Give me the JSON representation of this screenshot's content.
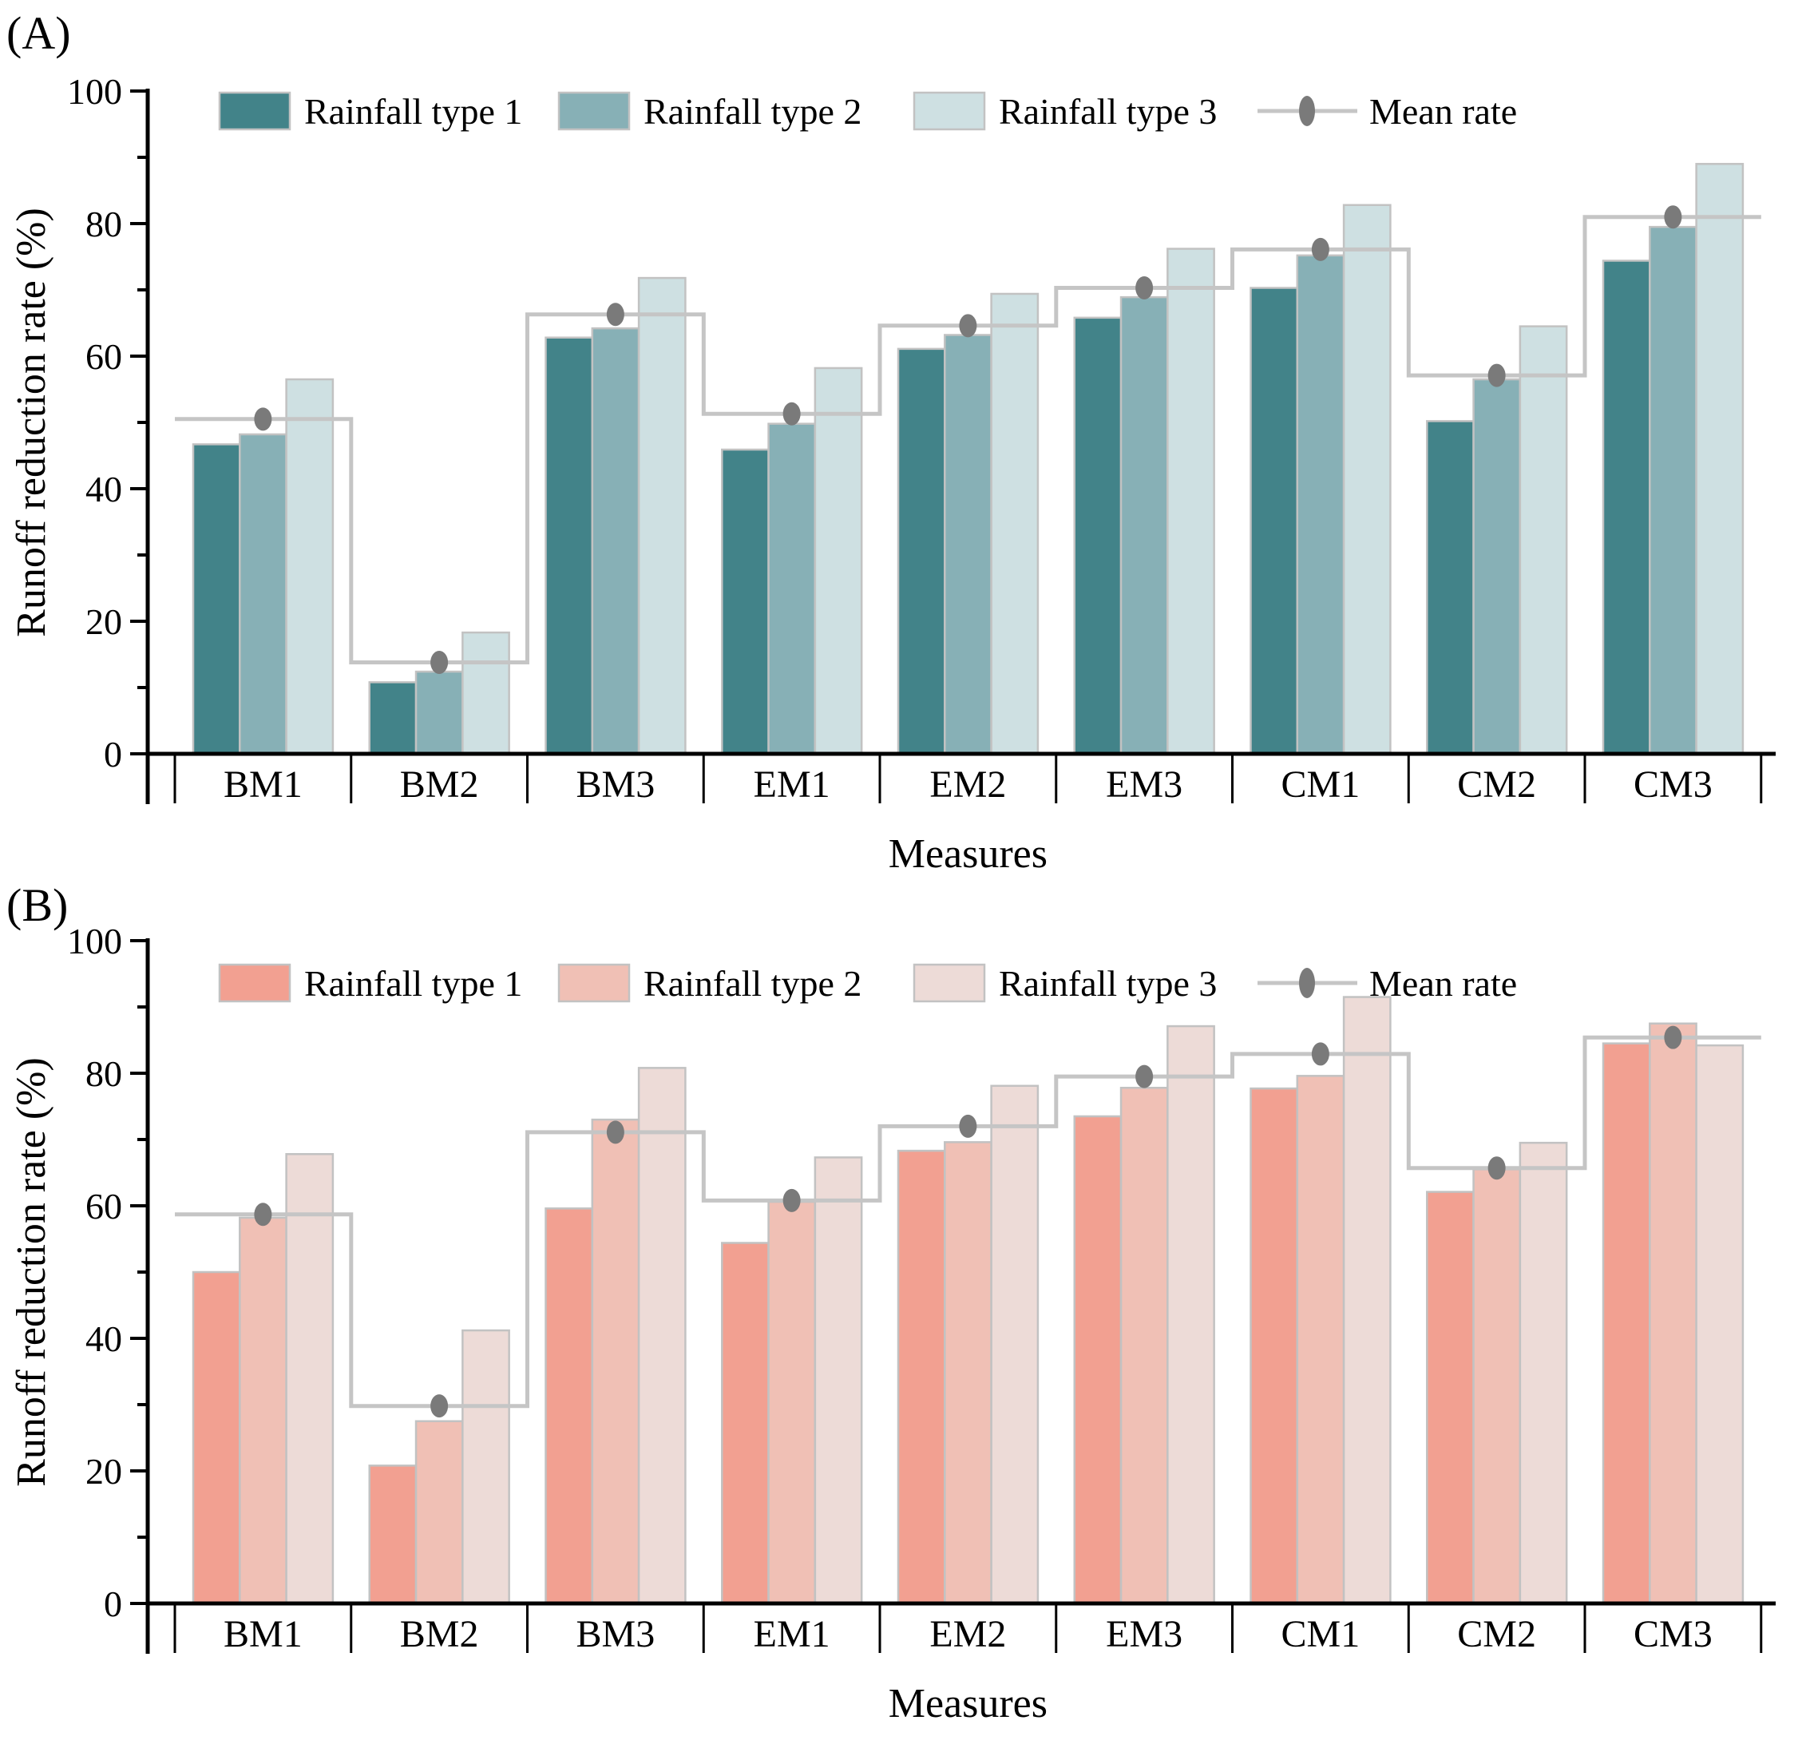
{
  "figure": {
    "background": "#ffffff",
    "xlabel": "Measures",
    "ylabel": "Runoff reduction rate (%)"
  },
  "chart_data": [
    {
      "type": "bar",
      "title": "(A)",
      "xlabel": "Measures",
      "ylabel": "Runoff reduction rate (%)",
      "ylim": [
        0,
        100
      ],
      "yticks": [
        0,
        20,
        40,
        60,
        80,
        100
      ],
      "minor_yticks": [
        10,
        30,
        50,
        70,
        90
      ],
      "grid": false,
      "legend_position": "top",
      "bar_edge_color": "#C2C2C2",
      "categories": [
        "BM1",
        "BM2",
        "BM3",
        "EM1",
        "EM2",
        "EM3",
        "CM1",
        "CM2",
        "CM3"
      ],
      "series": [
        {
          "name": "Rainfall type 1",
          "color": "#428389",
          "values": [
            46.7,
            10.8,
            62.8,
            45.9,
            61.1,
            65.8,
            70.3,
            50.2,
            74.4
          ]
        },
        {
          "name": "Rainfall type 2",
          "color": "#87B0B6",
          "values": [
            48.2,
            12.4,
            64.2,
            49.8,
            63.2,
            68.9,
            75.2,
            56.5,
            79.5
          ]
        },
        {
          "name": "Rainfall type 3",
          "color": "#CEE0E2",
          "values": [
            56.5,
            18.3,
            71.8,
            58.2,
            69.4,
            76.2,
            82.8,
            64.5,
            89.0
          ]
        }
      ],
      "mean_line": {
        "name": "Mean rate",
        "color": "#C5C5C5",
        "dot_color": "#7A7A7A",
        "values": [
          50.5,
          13.8,
          66.3,
          51.3,
          64.6,
          70.3,
          76.1,
          57.1,
          81.0
        ]
      }
    },
    {
      "type": "bar",
      "title": "(B)",
      "xlabel": "Measures",
      "ylabel": "Runoff reduction rate (%)",
      "ylim": [
        0,
        100
      ],
      "yticks": [
        0,
        20,
        40,
        60,
        80,
        100
      ],
      "minor_yticks": [
        10,
        30,
        50,
        70,
        90
      ],
      "grid": false,
      "legend_position": "top",
      "bar_edge_color": "#C2C2C2",
      "categories": [
        "BM1",
        "BM2",
        "BM3",
        "EM1",
        "EM2",
        "EM3",
        "CM1",
        "CM2",
        "CM3"
      ],
      "series": [
        {
          "name": "Rainfall type 1",
          "color": "#F2A091",
          "values": [
            50.0,
            20.8,
            59.6,
            54.4,
            68.3,
            73.5,
            77.7,
            62.1,
            84.5
          ]
        },
        {
          "name": "Rainfall type 2",
          "color": "#F0C0B5",
          "values": [
            58.2,
            27.5,
            73.0,
            60.6,
            69.6,
            77.8,
            79.6,
            65.5,
            87.5
          ]
        },
        {
          "name": "Rainfall type 3",
          "color": "#EDDBD7",
          "values": [
            67.8,
            41.2,
            80.8,
            67.3,
            78.1,
            87.1,
            91.5,
            69.5,
            84.2
          ]
        }
      ],
      "mean_line": {
        "name": "Mean rate",
        "color": "#C5C5C5",
        "dot_color": "#7A7A7A",
        "values": [
          58.7,
          29.8,
          71.1,
          60.8,
          72.0,
          79.5,
          82.9,
          65.7,
          85.4
        ]
      }
    }
  ]
}
